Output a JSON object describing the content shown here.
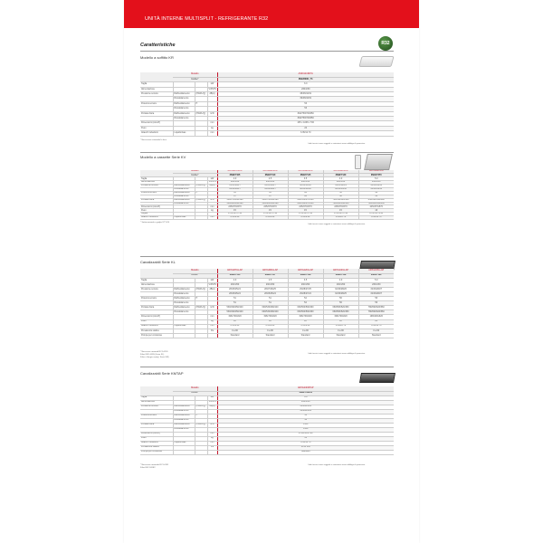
{
  "header": {
    "title": "UNITÀ INTERNE MULTISPLIT - REFRIGERANTE R32",
    "badge": "R32"
  },
  "section_heading": "Caratteristiche",
  "common": {
    "model_label": "Modello",
    "code_label": "Codice*",
    "right_note": "I dati tecnici sono soggetti a variazioni senza obbligo di preavviso"
  },
  "sections": [
    {
      "title": "Modello a soffitto KR",
      "models": [
        "AS6012UDFTA"
      ],
      "codes": [
        "3NGF8001_T1"
      ],
      "rows": [
        {
          "label": "Taglia",
          "unit": "kW",
          "values": [
            "6.0"
          ]
        },
        {
          "label": "Alimentazione",
          "unit": "V/Ph/Hz",
          "values": [
            "230/1/50"
          ]
        },
        {
          "label": "Pressione sonora",
          "sub": "Raffreddamento",
          "cond": "(H/M/L/Q)",
          "unit": "dB(A)",
          "values": [
            "38/36/33/31"
          ]
        },
        {
          "label": "",
          "sub": "Riscaldamento",
          "values": [
            "39/36/33/31"
          ]
        },
        {
          "label": "Potenza sonora",
          "sub": "Raffreddamento",
          "cond": "H",
          "values": [
            "53"
          ]
        },
        {
          "label": "",
          "sub": "Riscaldamento",
          "values": [
            "53"
          ]
        },
        {
          "label": "Portata d'aria",
          "sub": "Raffreddamento",
          "cond": "(H/M/L/Q)",
          "unit": "m³/h",
          "values": [
            "840/750/700/650"
          ]
        },
        {
          "label": "",
          "sub": "Riscaldamento",
          "values": [
            "840/750/700/650"
          ]
        },
        {
          "label": "Dimensioni (AxLxP)",
          "unit": "mm",
          "values": [
            "235 x 1068 x 700"
          ]
        },
        {
          "label": "Peso",
          "unit": "kg",
          "values": [
            "24"
          ]
        },
        {
          "label": "Attacchi tubazioni",
          "sub": "Liquido/Gas",
          "unit": "mm",
          "values": [
            "6.35/12.70"
          ]
        }
      ],
      "footnotes": [
        "* Necessario comando lo loco"
      ]
    },
    {
      "title": "Modello a cassette Serie KV",
      "models": [
        "AUHG07KVLA",
        "AUHG09KVLA",
        "AUHG12KVLA",
        "AUHG14KVLA",
        "AUHG18KVLA"
      ],
      "codes": [
        "3NGF7105",
        "3NGF7110",
        "3NGF7115",
        "3NGF7140",
        "3NGF7270"
      ],
      "rows": [
        {
          "label": "Taglia",
          "unit": "kW",
          "values": [
            "2.0",
            "2.5",
            "3.5",
            "4.0",
            "5.0"
          ]
        },
        {
          "label": "Alimentazione",
          "unit": "V/Ph/Hz",
          "values": [
            "230/1/50",
            "230/1/50",
            "230/1/50",
            "230/1/50",
            "230/1/50"
          ]
        },
        {
          "label": "Pressione sonora",
          "sub": "Raffreddamento",
          "cond": "(H/M/L/Q)",
          "unit": "dB(A)",
          "values": [
            "31/31/29/27",
            "34/31/29/27",
            "38/34/31/28",
            "39/35/32/29",
            "43/38/34/30"
          ]
        },
        {
          "label": "",
          "sub": "Riscaldamento",
          "values": [
            "34/32/29/27",
            "34/32/29/27",
            "38/34/31/28",
            "40/36/34/30",
            "41/38/34/30"
          ]
        },
        {
          "label": "Potenza sonora",
          "sub": "Raffreddamento",
          "cond": "H",
          "values": [
            "45",
            "45",
            "49",
            "50",
            "58"
          ]
        },
        {
          "label": "",
          "sub": "Riscaldamento",
          "values": [
            "47",
            "47",
            "49",
            "50",
            "56"
          ]
        },
        {
          "label": "Portata d'aria",
          "sub": "Raffreddamento",
          "cond": "(H/M/L/Q)",
          "unit": "m³/h",
          "values": [
            "540/470/440/390",
            "540/470/440/390",
            "640/530/470/410",
            "700/590/520/440",
            "830/690/590/480"
          ]
        },
        {
          "label": "",
          "sub": "Riscaldamento",
          "values": [
            "540/480/440/390",
            "540/480/440/390",
            "640/540/470/410",
            "700/600/540/450",
            "720/600/530/450"
          ]
        },
        {
          "label": "Dimensioni (AxLxP)",
          "unit": "mm",
          "values": [
            "245x570x570",
            "245x570x570",
            "245x570x570",
            "245x570x570",
            "245x570x570"
          ]
        },
        {
          "label": "Peso",
          "unit": "kg",
          "values": [
            "15",
            "15",
            "15",
            "15",
            "16"
          ]
        },
        {
          "label": "Griglia",
          "values": [
            "UTG-UFYF-W",
            "UTG-UFYF-W",
            "UTG-UFYF-W",
            "UTG-UFYF-W",
            "UTG-UFYF-W"
          ]
        },
        {
          "label": "Attacchi tubazioni",
          "sub": "Liquido/Gas",
          "unit": "mm",
          "values": [
            "6.35/9.52",
            "6.35/9.52",
            "6.35/9.52",
            "6.35/12.70",
            "6.35/12.70"
          ]
        }
      ],
      "footnotes": [
        "* Sottocomando a griglia UTY-LN"
      ]
    },
    {
      "title": "Canalizzabili Serie KL",
      "models": [
        "ARXG07KLLAP",
        "ARXG09KLLAP",
        "ARXG12KLLAP",
        "ARXG14KLLAP",
        "ARXG18KLLAP"
      ],
      "codes": [
        "3NGF7114",
        "3NGF7117",
        "3NGF7118",
        "3NGF7119",
        "3NGF7122"
      ],
      "rows": [
        {
          "label": "Taglia",
          "unit": "kW",
          "values": [
            "2.0",
            "2.5",
            "3.5",
            "4.0",
            "5.0"
          ]
        },
        {
          "label": "Alimentazione",
          "unit": "V/Ph/Hz",
          "values": [
            "230/1/50",
            "230/1/50",
            "230/1/50",
            "230/1/50",
            "230/1/50"
          ]
        },
        {
          "label": "Pressione sonora",
          "sub": "Raffreddamento",
          "cond": "(H/M/L/Q)",
          "unit": "dB(A)",
          "values": [
            "28/26/25/24",
            "28/27/26/25",
            "29/28/27/25",
            "32/30/28/26",
            "32/30/28/27"
          ]
        },
        {
          "label": "",
          "sub": "Riscaldamento",
          "values": [
            "28/26/25/24",
            "28/26/25/24",
            "29/28/27/24",
            "32/30/28/25",
            "32/30/28/27"
          ]
        },
        {
          "label": "Potenza sonora",
          "sub": "Raffreddamento",
          "cond": "H",
          "values": [
            "51",
            "51",
            "54",
            "56",
            "56"
          ]
        },
        {
          "label": "",
          "sub": "Riscaldamento",
          "values": [
            "51",
            "51",
            "54",
            "56",
            "56"
          ]
        },
        {
          "label": "Portata d'aria",
          "sub": "Raffreddamento",
          "cond": "(H/M/L/Q)",
          "unit": "m³/h",
          "values": [
            "530/490/450/440",
            "600/530/480/440",
            "630/560/500/460",
            "660/580/520/450",
            "780/690/620/560"
          ]
        },
        {
          "label": "",
          "sub": "Riscaldamento",
          "values": [
            "530/490/450/440",
            "600/530/480/440",
            "630/560/500/460",
            "660/580/520/450",
            "780/690/620/560"
          ]
        },
        {
          "label": "Dimensioni (AxLxP)",
          "unit": "mm",
          "values": [
            "198x700x620",
            "198x700x620",
            "198x700x620",
            "198x700x620",
            "198x900x620"
          ]
        },
        {
          "label": "Peso",
          "unit": "kg",
          "values": [
            "18",
            "18",
            "18",
            "18",
            "20"
          ]
        },
        {
          "label": "Attacchi tubazioni",
          "sub": "Liquido/Gas",
          "unit": "mm",
          "values": [
            "6.35/9.52",
            "6.35/9.52",
            "6.35/9.52",
            "6.35/12.70",
            "6.35/12.70"
          ]
        },
        {
          "label": "Prevalenza statica",
          "unit": "Pa",
          "values": [
            "0 a 90",
            "0 a 90",
            "0 a 90",
            "0 a 90",
            "0 a 90"
          ]
        },
        {
          "label": "Pompa per condensa",
          "values": [
            "Standard",
            "Standard",
            "Standard",
            "Standard",
            "Standard"
          ]
        }
      ],
      "footnotes": [
        "* Necessari comandi RC1-0201",
        "Filtro KIK1-0265 (Serie KL)",
        "Filtro e flangia ready ( Serie KM)"
      ]
    },
    {
      "title": "Canalizzabili Serie KMTAP",
      "models": [
        "ARXG24KMTAP"
      ],
      "codes": [
        "3NGF7062J4"
      ],
      "rows": [
        {
          "label": "Taglia",
          "unit": "kW",
          "values": [
            "6.8"
          ]
        },
        {
          "label": "Alimentazione",
          "unit": "V/Ph/Hz",
          "values": [
            "230/1/50"
          ]
        },
        {
          "label": "Pressione sonora",
          "sub": "Raffreddamento",
          "cond": "(H/M/L/Q)",
          "unit": "dB(A)",
          "values": [
            "32/28/25/24"
          ]
        },
        {
          "label": "",
          "sub": "Riscaldamento",
          "values": [
            "32/28/25/24"
          ]
        },
        {
          "label": "Potenza sonora",
          "sub": "Raffreddamento",
          "cond": "H",
          "values": [
            "54"
          ]
        },
        {
          "label": "",
          "sub": "Riscaldamento",
          "values": [
            "58"
          ]
        },
        {
          "label": "Portata d'aria",
          "sub": "Raffreddamento",
          "cond": "(H/M/L/Q)",
          "unit": "m³/h",
          "values": [
            "1150"
          ]
        },
        {
          "label": "",
          "sub": "Riscaldamento",
          "values": [
            "1150"
          ]
        },
        {
          "label": "Dimensioni (AxLxP)",
          "unit": "mm",
          "values": [
            "270x1135x700"
          ]
        },
        {
          "label": "Peso",
          "unit": "kg",
          "values": [
            "31"
          ]
        },
        {
          "label": "Attacchi tubazioni",
          "sub": "Liquido/Gas",
          "unit": "mm",
          "values": [
            "6.35/12.70"
          ]
        },
        {
          "label": "Prevalenza statica",
          "unit": "Pa",
          "values": [
            "30 to 150"
          ]
        },
        {
          "label": "Pompa per condensa",
          "values": [
            "Standard"
          ]
        }
      ],
      "footnotes": [
        "* Necessari comando RC1-0201",
        "Filtro EKCU-RE2"
      ]
    }
  ]
}
